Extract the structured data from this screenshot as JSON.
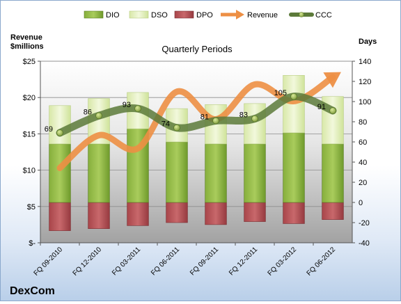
{
  "chart_data": {
    "type": "bar",
    "title": "Quarterly Periods",
    "company": "DexCom",
    "left_axis_label": [
      "Revenue",
      "$millions"
    ],
    "right_axis_label": "Days",
    "left_ylim": [
      0,
      25
    ],
    "left_ticks": [
      0,
      5,
      10,
      15,
      20,
      25
    ],
    "left_tick_labels": [
      "$-",
      "$5",
      "$10",
      "$15",
      "$20",
      "$25"
    ],
    "right_ylim": [
      -40,
      140
    ],
    "right_ticks": [
      -40,
      -20,
      0,
      20,
      40,
      60,
      80,
      100,
      120,
      140
    ],
    "categories": [
      "FQ 09-2010",
      "FQ 12-2010",
      "FQ 03-2011",
      "FQ 06-2011",
      "FQ 09-2011",
      "FQ 12-2011",
      "FQ 03-2012",
      "FQ 06-2012"
    ],
    "legend_position": "top",
    "series": [
      {
        "name": "DIO",
        "type": "stacked-bar",
        "axis": "right",
        "color": "#6f9a2c",
        "values": [
          58,
          58,
          73,
          60,
          58,
          58,
          69,
          58
        ]
      },
      {
        "name": "DSO",
        "type": "stacked-bar",
        "axis": "right",
        "color": "#e5f0c6",
        "values": [
          38,
          45,
          36,
          33,
          39,
          40,
          57,
          47
        ]
      },
      {
        "name": "DPO",
        "type": "negative-bar",
        "axis": "right",
        "color": "#b04a4e",
        "values": [
          -28,
          -26,
          -23,
          -20,
          -22,
          -19,
          -21,
          -17
        ]
      },
      {
        "name": "Revenue",
        "type": "line",
        "axis": "left",
        "color": "#ed8f44",
        "values": [
          10.3,
          14.8,
          13.0,
          20.8,
          17.0,
          21.8,
          19.5,
          22.8
        ]
      },
      {
        "name": "CCC",
        "type": "line",
        "axis": "right",
        "color": "#5c7a3a",
        "values": [
          69,
          86,
          93,
          74,
          81,
          83,
          105,
          91
        ],
        "labels": [
          "69",
          "86",
          "93",
          "74",
          "81",
          "83",
          "105",
          "91"
        ]
      }
    ]
  }
}
